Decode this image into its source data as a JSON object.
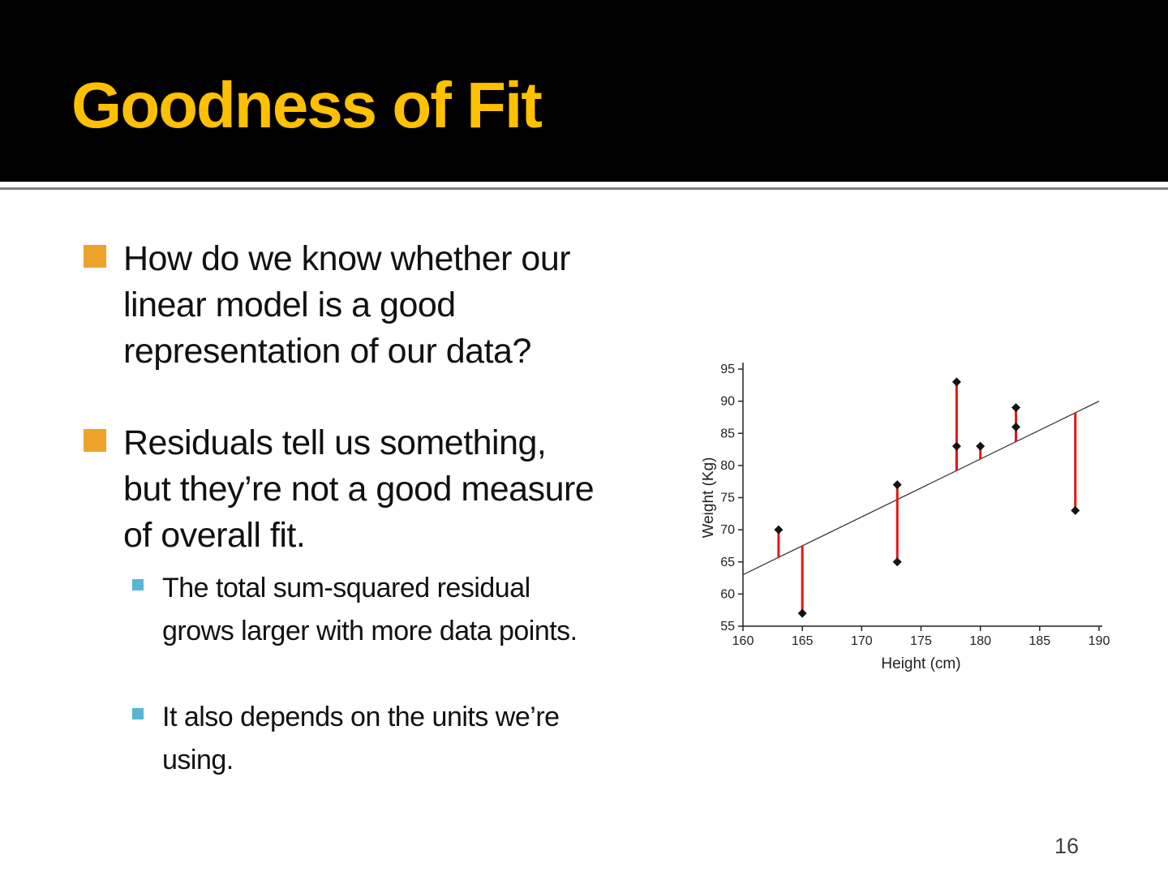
{
  "header": {
    "title": "Goodness of Fit"
  },
  "bullets": [
    {
      "level": 1,
      "text": "How do we know whether our\nlinear model is a good\nrepresentation of our data?"
    },
    {
      "level": 1,
      "text": "Residuals tell us something,\nbut they’re not a good measure\nof overall fit."
    },
    {
      "level": 2,
      "text": "The total sum-squared residual\ngrows larger with more data points."
    },
    {
      "level": 2,
      "text": "It also depends on the units we’re\nusing."
    }
  ],
  "footer": {
    "page_number": "16"
  },
  "colors": {
    "header-bg": "#000000",
    "title": "#FFC000",
    "divider": "#7F7F7F",
    "text": "#111111",
    "bullet-l1": "#EDA32B",
    "bullet-l2": "#58B6D4",
    "page-number": "#404040",
    "residual": "#E81414",
    "point": "#141414",
    "fit-line": "#3A3A3A",
    "chart-text": "#222222"
  },
  "chart_data": {
    "type": "scatter",
    "title": "",
    "xlabel": "Height (cm)",
    "ylabel": "Weight (Kg)",
    "xlim": [
      160,
      190
    ],
    "ylim": [
      55,
      95
    ],
    "xticks": [
      160,
      165,
      170,
      175,
      180,
      185,
      190
    ],
    "yticks": [
      55,
      60,
      65,
      70,
      75,
      80,
      85,
      90,
      95
    ],
    "grid": false,
    "legend": false,
    "points": [
      [
        163,
        70
      ],
      [
        165,
        57
      ],
      [
        173,
        77
      ],
      [
        173,
        65
      ],
      [
        178,
        93
      ],
      [
        178,
        83
      ],
      [
        180,
        83
      ],
      [
        183,
        89
      ],
      [
        183,
        86
      ],
      [
        188,
        73
      ]
    ],
    "fit_line": {
      "x1": 160,
      "y1": 63,
      "x2": 190,
      "y2": 90
    },
    "residuals_shown": true
  }
}
